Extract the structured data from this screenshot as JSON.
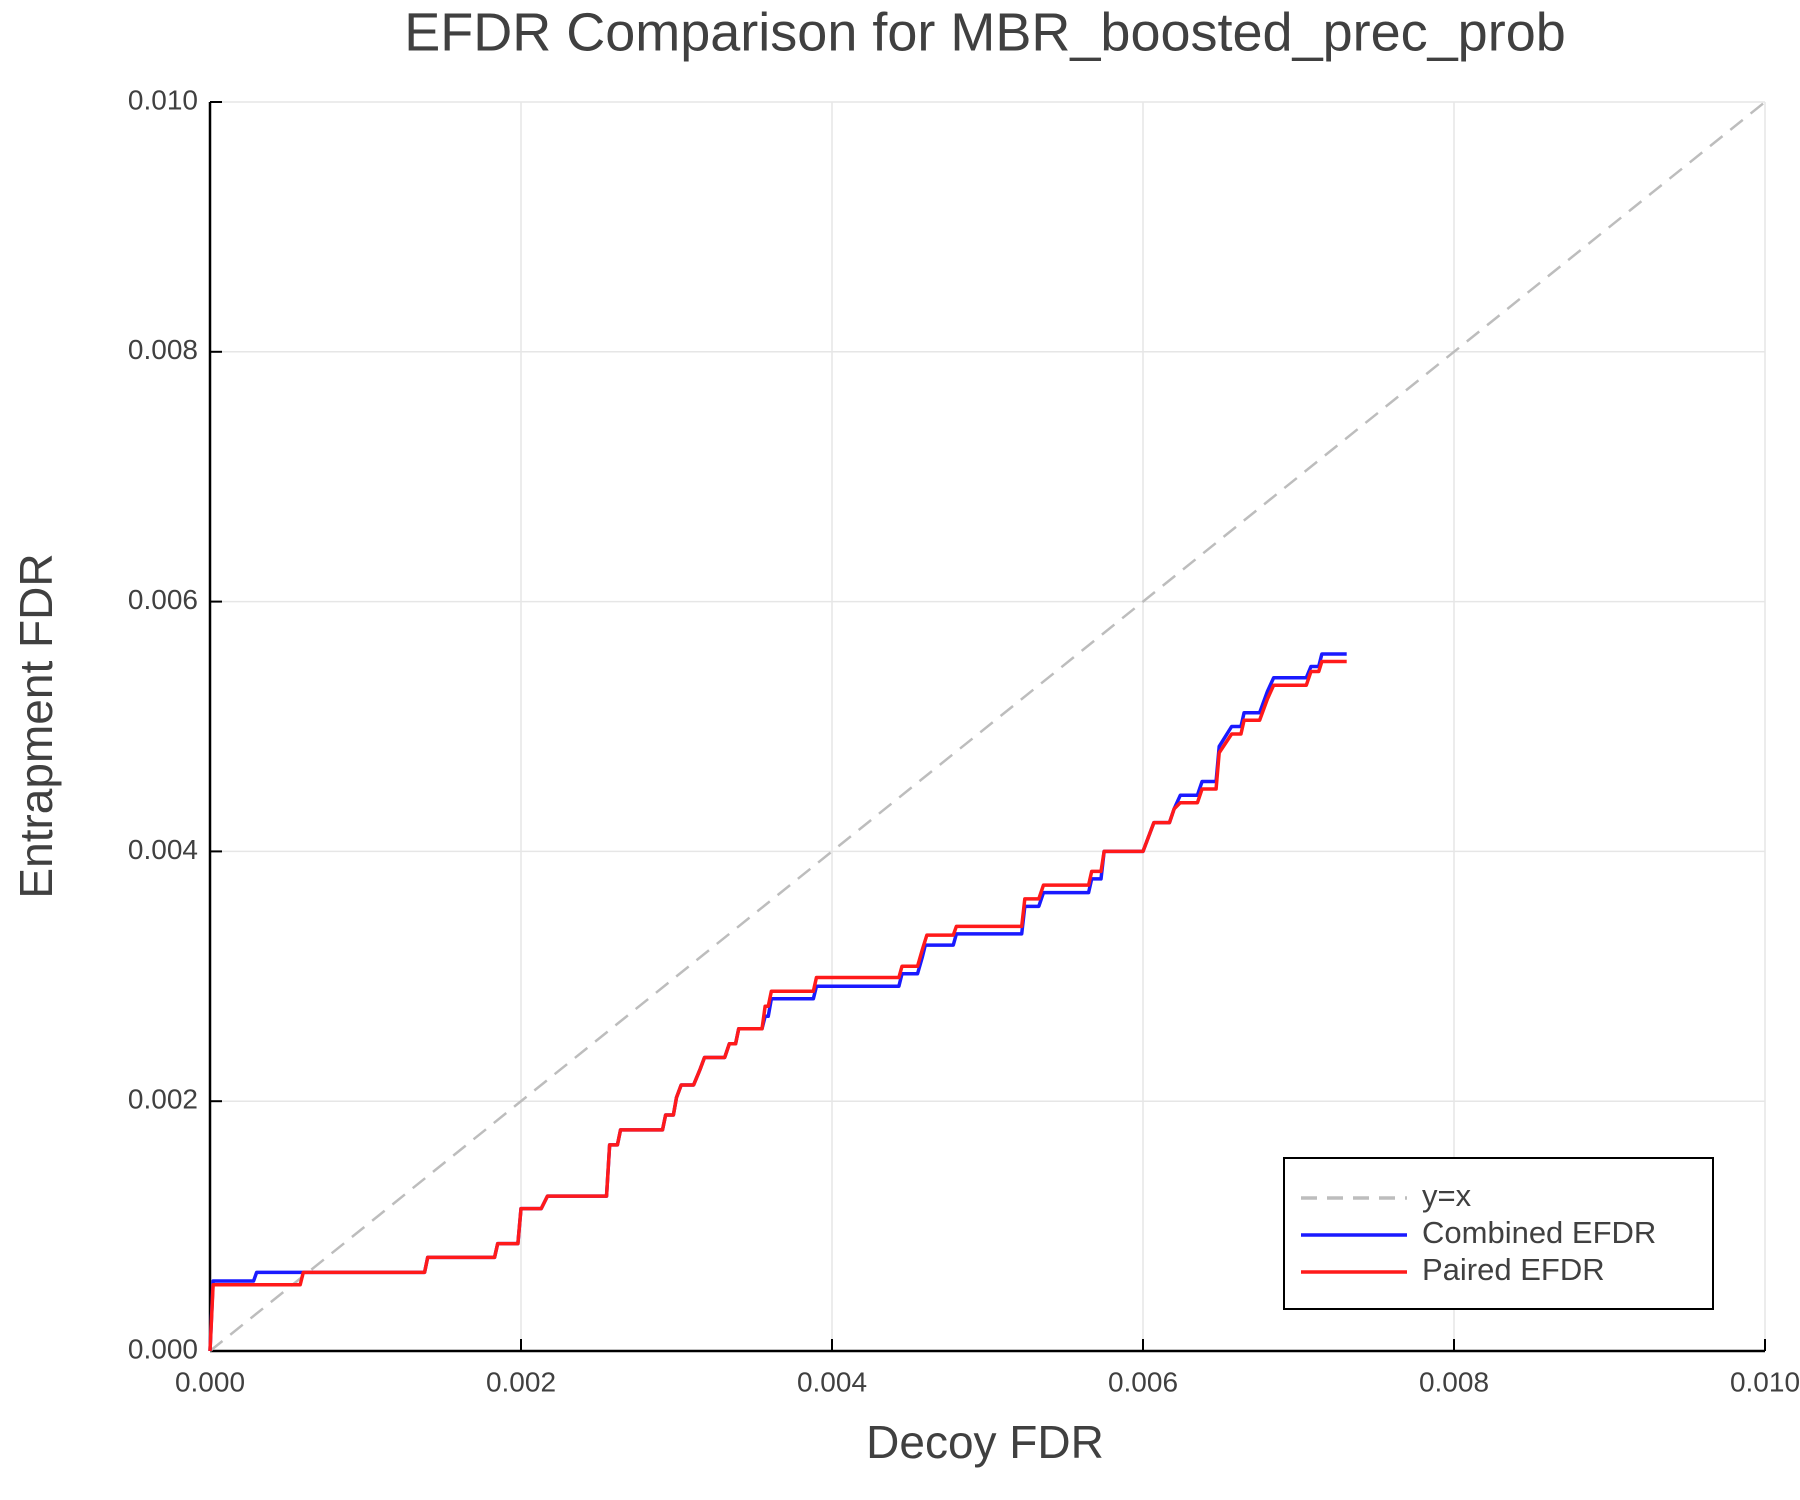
{
  "chart_data": {
    "type": "line",
    "title": "EFDR Comparison for MBR_boosted_prec_prob",
    "x_label": "Decoy FDR",
    "y_label": "Entrapment FDR",
    "xlim": [
      0,
      0.01
    ],
    "ylim": [
      0,
      0.01
    ],
    "xticks": [
      {
        "value": 0,
        "label": "0.000"
      },
      {
        "value": 0.002,
        "label": "0.002"
      },
      {
        "value": 0.004,
        "label": "0.004"
      },
      {
        "value": 0.006,
        "label": "0.006"
      },
      {
        "value": 0.008,
        "label": "0.008"
      },
      {
        "value": 0.01,
        "label": "0.010"
      }
    ],
    "yticks": [
      {
        "value": 0,
        "label": "0.000"
      },
      {
        "value": 0.002,
        "label": "0.002"
      },
      {
        "value": 0.004,
        "label": "0.004"
      },
      {
        "value": 0.006,
        "label": "0.006"
      },
      {
        "value": 0.008,
        "label": "0.008"
      },
      {
        "value": 0.01,
        "label": "0.010"
      }
    ],
    "grid": true,
    "legend": "bottom right",
    "series": [
      {
        "name": "y=x",
        "color": "#bdbdbd",
        "style": "dashed",
        "x": [
          0,
          0.01
        ],
        "values": [
          0,
          0.01
        ]
      },
      {
        "name": "Combined EFDR",
        "color": "#1a1aff",
        "style": "solid",
        "x": [
          0,
          2e-05,
          0.00028,
          0.0003,
          0.00138,
          0.0014,
          0.00183,
          0.00185,
          0.00198,
          0.002,
          0.00213,
          0.00217,
          0.00255,
          0.00257,
          0.00262,
          0.00264,
          0.00291,
          0.00293,
          0.00298,
          0.003,
          0.00303,
          0.00311,
          0.00315,
          0.00318,
          0.00331,
          0.00334,
          0.00338,
          0.0034,
          0.00355,
          0.00357,
          0.00359,
          0.00361,
          0.00388,
          0.0039,
          0.00443,
          0.00445,
          0.00455,
          0.00458,
          0.0046,
          0.00478,
          0.0048,
          0.00522,
          0.00524,
          0.00533,
          0.00536,
          0.00565,
          0.00567,
          0.00573,
          0.00575,
          0.006,
          0.00607,
          0.00617,
          0.0062,
          0.00624,
          0.00635,
          0.00638,
          0.00647,
          0.00649,
          0.00657,
          0.00663,
          0.00665,
          0.00675,
          0.0068,
          0.00684,
          0.00705,
          0.00708,
          0.00713,
          0.00715,
          0.00731
        ],
        "values": [
          0,
          0.00056,
          0.00056,
          0.00063,
          0.00063,
          0.00075,
          0.00075,
          0.00086,
          0.00086,
          0.00114,
          0.00114,
          0.00124,
          0.00124,
          0.00165,
          0.00165,
          0.00177,
          0.00177,
          0.00189,
          0.00189,
          0.00203,
          0.00213,
          0.00213,
          0.00225,
          0.00235,
          0.00235,
          0.00246,
          0.00246,
          0.00258,
          0.00258,
          0.00268,
          0.00268,
          0.00282,
          0.00282,
          0.00292,
          0.00292,
          0.00302,
          0.00302,
          0.00315,
          0.00325,
          0.00325,
          0.00334,
          0.00334,
          0.00356,
          0.00356,
          0.00367,
          0.00367,
          0.00378,
          0.00378,
          0.004,
          0.004,
          0.00423,
          0.00423,
          0.00434,
          0.00445,
          0.00445,
          0.00456,
          0.00456,
          0.00484,
          0.005,
          0.005,
          0.00511,
          0.00511,
          0.00528,
          0.00539,
          0.00539,
          0.00548,
          0.00548,
          0.00558,
          0.00558
        ]
      },
      {
        "name": "Paired EFDR",
        "color": "#ff1a1a",
        "style": "solid",
        "x": [
          0,
          2e-05,
          0.00058,
          0.0006,
          0.00138,
          0.0014,
          0.00183,
          0.00185,
          0.00198,
          0.002,
          0.00213,
          0.00217,
          0.00255,
          0.00257,
          0.00262,
          0.00264,
          0.00291,
          0.00293,
          0.00298,
          0.003,
          0.00303,
          0.00311,
          0.00315,
          0.00318,
          0.00331,
          0.00334,
          0.00338,
          0.0034,
          0.00355,
          0.00357,
          0.00359,
          0.00361,
          0.00388,
          0.0039,
          0.00443,
          0.00445,
          0.00455,
          0.00458,
          0.00461,
          0.00478,
          0.0048,
          0.00522,
          0.00524,
          0.00533,
          0.00536,
          0.00565,
          0.00567,
          0.00573,
          0.00575,
          0.006,
          0.00607,
          0.00617,
          0.0062,
          0.00624,
          0.00635,
          0.00638,
          0.00647,
          0.00649,
          0.00657,
          0.00663,
          0.00665,
          0.00675,
          0.0068,
          0.00684,
          0.00705,
          0.00708,
          0.00713,
          0.00715,
          0.00731
        ],
        "values": [
          0,
          0.00053,
          0.00053,
          0.00063,
          0.00063,
          0.00075,
          0.00075,
          0.00086,
          0.00086,
          0.00114,
          0.00114,
          0.00124,
          0.00124,
          0.00165,
          0.00165,
          0.00177,
          0.00177,
          0.00189,
          0.00189,
          0.00203,
          0.00213,
          0.00213,
          0.00225,
          0.00235,
          0.00235,
          0.00246,
          0.00246,
          0.00258,
          0.00258,
          0.00276,
          0.00276,
          0.00288,
          0.00288,
          0.00299,
          0.00299,
          0.00308,
          0.00308,
          0.00321,
          0.00333,
          0.00333,
          0.0034,
          0.0034,
          0.00362,
          0.00362,
          0.00373,
          0.00373,
          0.00384,
          0.00384,
          0.004,
          0.004,
          0.00423,
          0.00423,
          0.00434,
          0.00439,
          0.00439,
          0.0045,
          0.0045,
          0.00479,
          0.00494,
          0.00494,
          0.00505,
          0.00505,
          0.00522,
          0.00533,
          0.00533,
          0.00544,
          0.00544,
          0.00552,
          0.00552
        ]
      }
    ]
  }
}
